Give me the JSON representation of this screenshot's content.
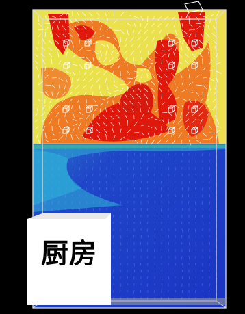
{
  "kitchen": {
    "label": "厨房"
  },
  "colors": {
    "background": "#000000",
    "hot_red": "#e0180c",
    "warm_orange": "#ee7a24",
    "mild_yellow": "#eddf4e",
    "cool_blue": "#1e3cc8",
    "mid_cyan": "#2a9ad0",
    "kitchen_block": "#ffffff",
    "frame_lines": "#dddddd",
    "vectors": "#ffffff"
  },
  "icons": [
    "cube-marker-icon",
    "velocity-arrow-icon"
  ]
}
